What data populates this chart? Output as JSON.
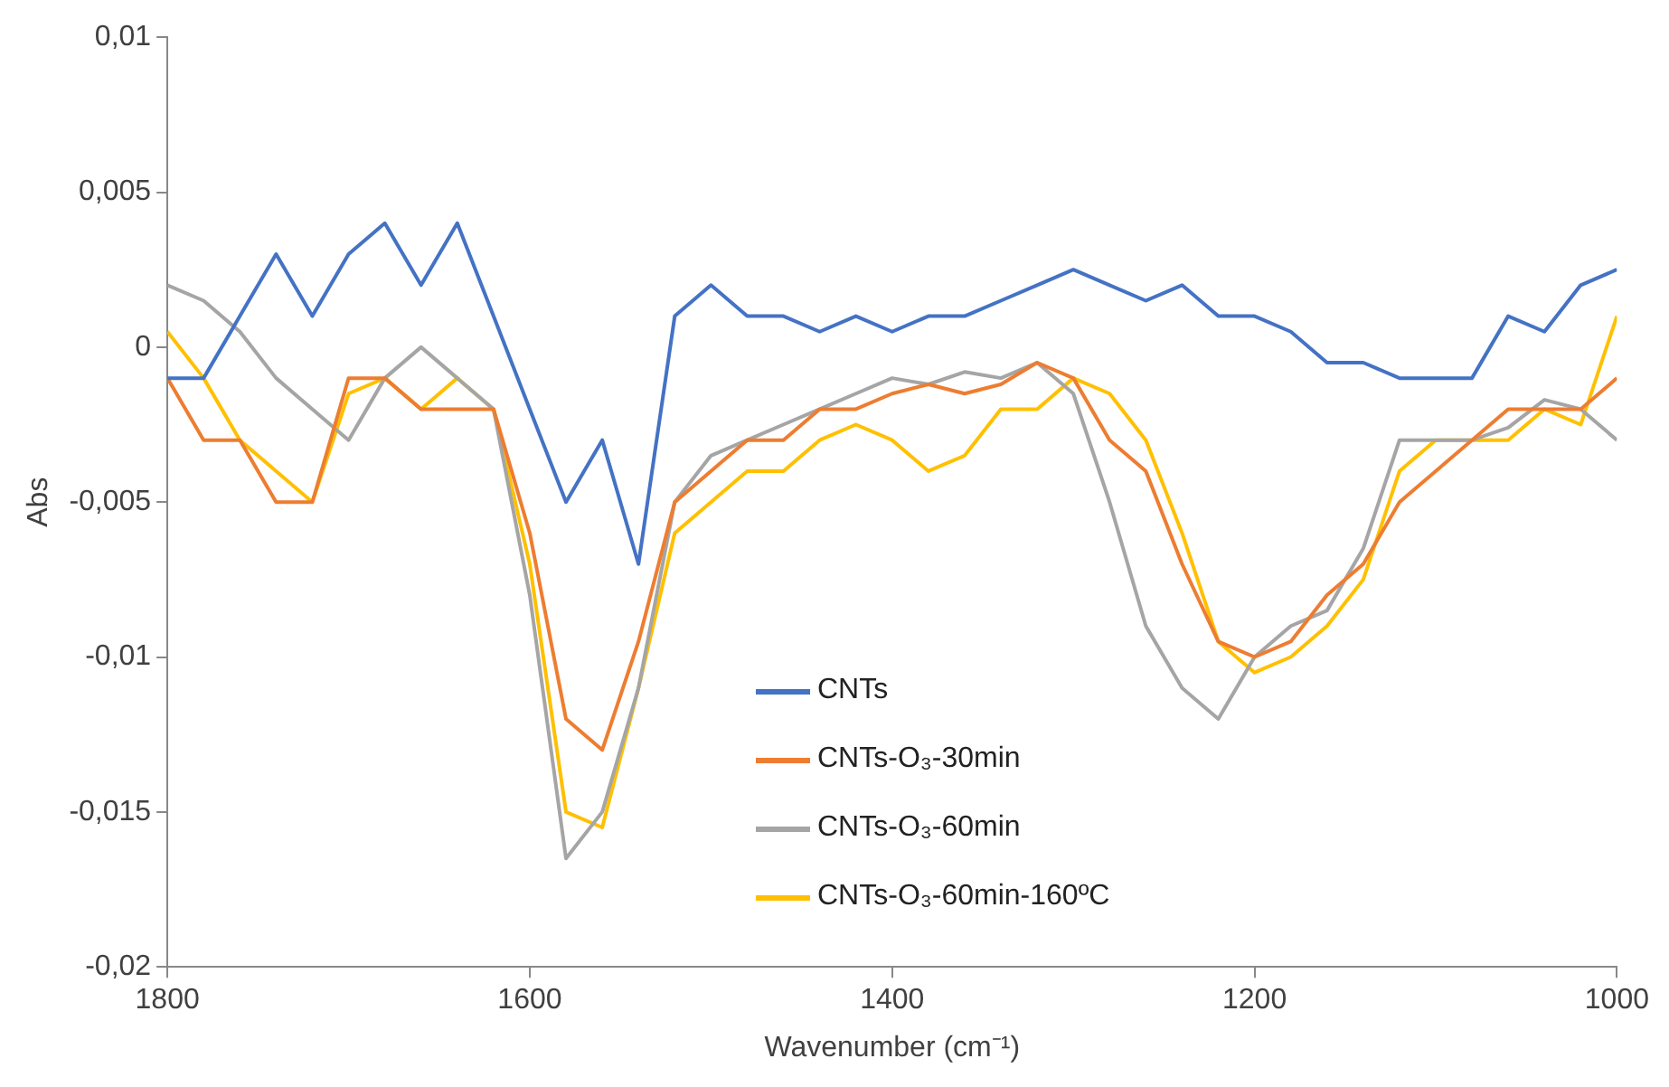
{
  "chart_data": {
    "type": "line",
    "xlabel": "Wavenumber (cm⁻¹)",
    "ylabel": "Abs",
    "x": [
      1800,
      1780,
      1760,
      1740,
      1720,
      1700,
      1680,
      1660,
      1640,
      1620,
      1600,
      1580,
      1560,
      1540,
      1520,
      1500,
      1480,
      1460,
      1440,
      1420,
      1400,
      1380,
      1360,
      1340,
      1320,
      1300,
      1280,
      1260,
      1240,
      1220,
      1200,
      1180,
      1160,
      1140,
      1120,
      1100,
      1080,
      1060,
      1040,
      1020,
      1000
    ],
    "series": [
      {
        "name": "CNTs",
        "color": "#4472c4",
        "values": [
          -0.001,
          -0.001,
          0.001,
          0.003,
          0.001,
          0.003,
          0.004,
          0.002,
          0.004,
          0.001,
          -0.002,
          -0.005,
          -0.003,
          -0.007,
          0.001,
          0.002,
          0.001,
          0.001,
          0.0005,
          0.001,
          0.0005,
          0.001,
          0.001,
          0.0015,
          0.002,
          0.0025,
          0.002,
          0.0015,
          0.002,
          0.001,
          0.001,
          0.0005,
          -0.0005,
          -0.0005,
          -0.001,
          -0.001,
          -0.001,
          0.001,
          0.0005,
          0.002,
          0.0025
        ]
      },
      {
        "name": "CNTs-O₃-30min",
        "color": "#ed7d31",
        "values": [
          -0.001,
          -0.003,
          -0.003,
          -0.005,
          -0.005,
          -0.001,
          -0.001,
          -0.002,
          -0.002,
          -0.002,
          -0.006,
          -0.012,
          -0.013,
          -0.0095,
          -0.005,
          -0.004,
          -0.003,
          -0.003,
          -0.002,
          -0.002,
          -0.0015,
          -0.0012,
          -0.0015,
          -0.0012,
          -0.0005,
          -0.001,
          -0.003,
          -0.004,
          -0.007,
          -0.0095,
          -0.01,
          -0.0095,
          -0.008,
          -0.007,
          -0.005,
          -0.004,
          -0.003,
          -0.002,
          -0.002,
          -0.002,
          -0.001
        ]
      },
      {
        "name": "CNTs-O₃-60min",
        "color": "#a5a5a5",
        "values": [
          0.002,
          0.0015,
          0.0005,
          -0.001,
          -0.002,
          -0.003,
          -0.001,
          0,
          -0.001,
          -0.002,
          -0.008,
          -0.0165,
          -0.015,
          -0.011,
          -0.005,
          -0.0035,
          -0.003,
          -0.0025,
          -0.002,
          -0.0015,
          -0.001,
          -0.0012,
          -0.0008,
          -0.001,
          -0.0005,
          -0.0015,
          -0.005,
          -0.009,
          -0.011,
          -0.012,
          -0.01,
          -0.009,
          -0.0085,
          -0.0065,
          -0.003,
          -0.003,
          -0.003,
          -0.0026,
          -0.0017,
          -0.002,
          -0.003
        ]
      },
      {
        "name": "CNTs-O₃-60min-160ºC",
        "color": "#ffc000",
        "values": [
          0.0005,
          -0.001,
          -0.003,
          -0.004,
          -0.005,
          -0.0015,
          -0.001,
          -0.002,
          -0.001,
          -0.002,
          -0.007,
          -0.015,
          -0.0155,
          -0.011,
          -0.006,
          -0.005,
          -0.004,
          -0.004,
          -0.003,
          -0.0025,
          -0.003,
          -0.004,
          -0.0035,
          -0.002,
          -0.002,
          -0.001,
          -0.0015,
          -0.003,
          -0.006,
          -0.0095,
          -0.0105,
          -0.01,
          -0.009,
          -0.0075,
          -0.004,
          -0.003,
          -0.003,
          -0.003,
          -0.002,
          -0.0025,
          0.001
        ]
      }
    ],
    "xlim": [
      1800,
      1000
    ],
    "xticks": [
      1800,
      1600,
      1400,
      1200,
      1000
    ],
    "ylim": [
      -0.02,
      0.01
    ],
    "yticks": [
      {
        "value": -0.02,
        "label": "-0,02"
      },
      {
        "value": -0.015,
        "label": "-0,015"
      },
      {
        "value": -0.01,
        "label": "-0,01"
      },
      {
        "value": -0.005,
        "label": "-0,005"
      },
      0,
      {
        "value": 0.005,
        "label": "0,005"
      },
      {
        "value": 0.01,
        "label": "0,01"
      }
    ],
    "grid": false,
    "legend": "bottom",
    "marker": "none",
    "line_style": "solid"
  }
}
